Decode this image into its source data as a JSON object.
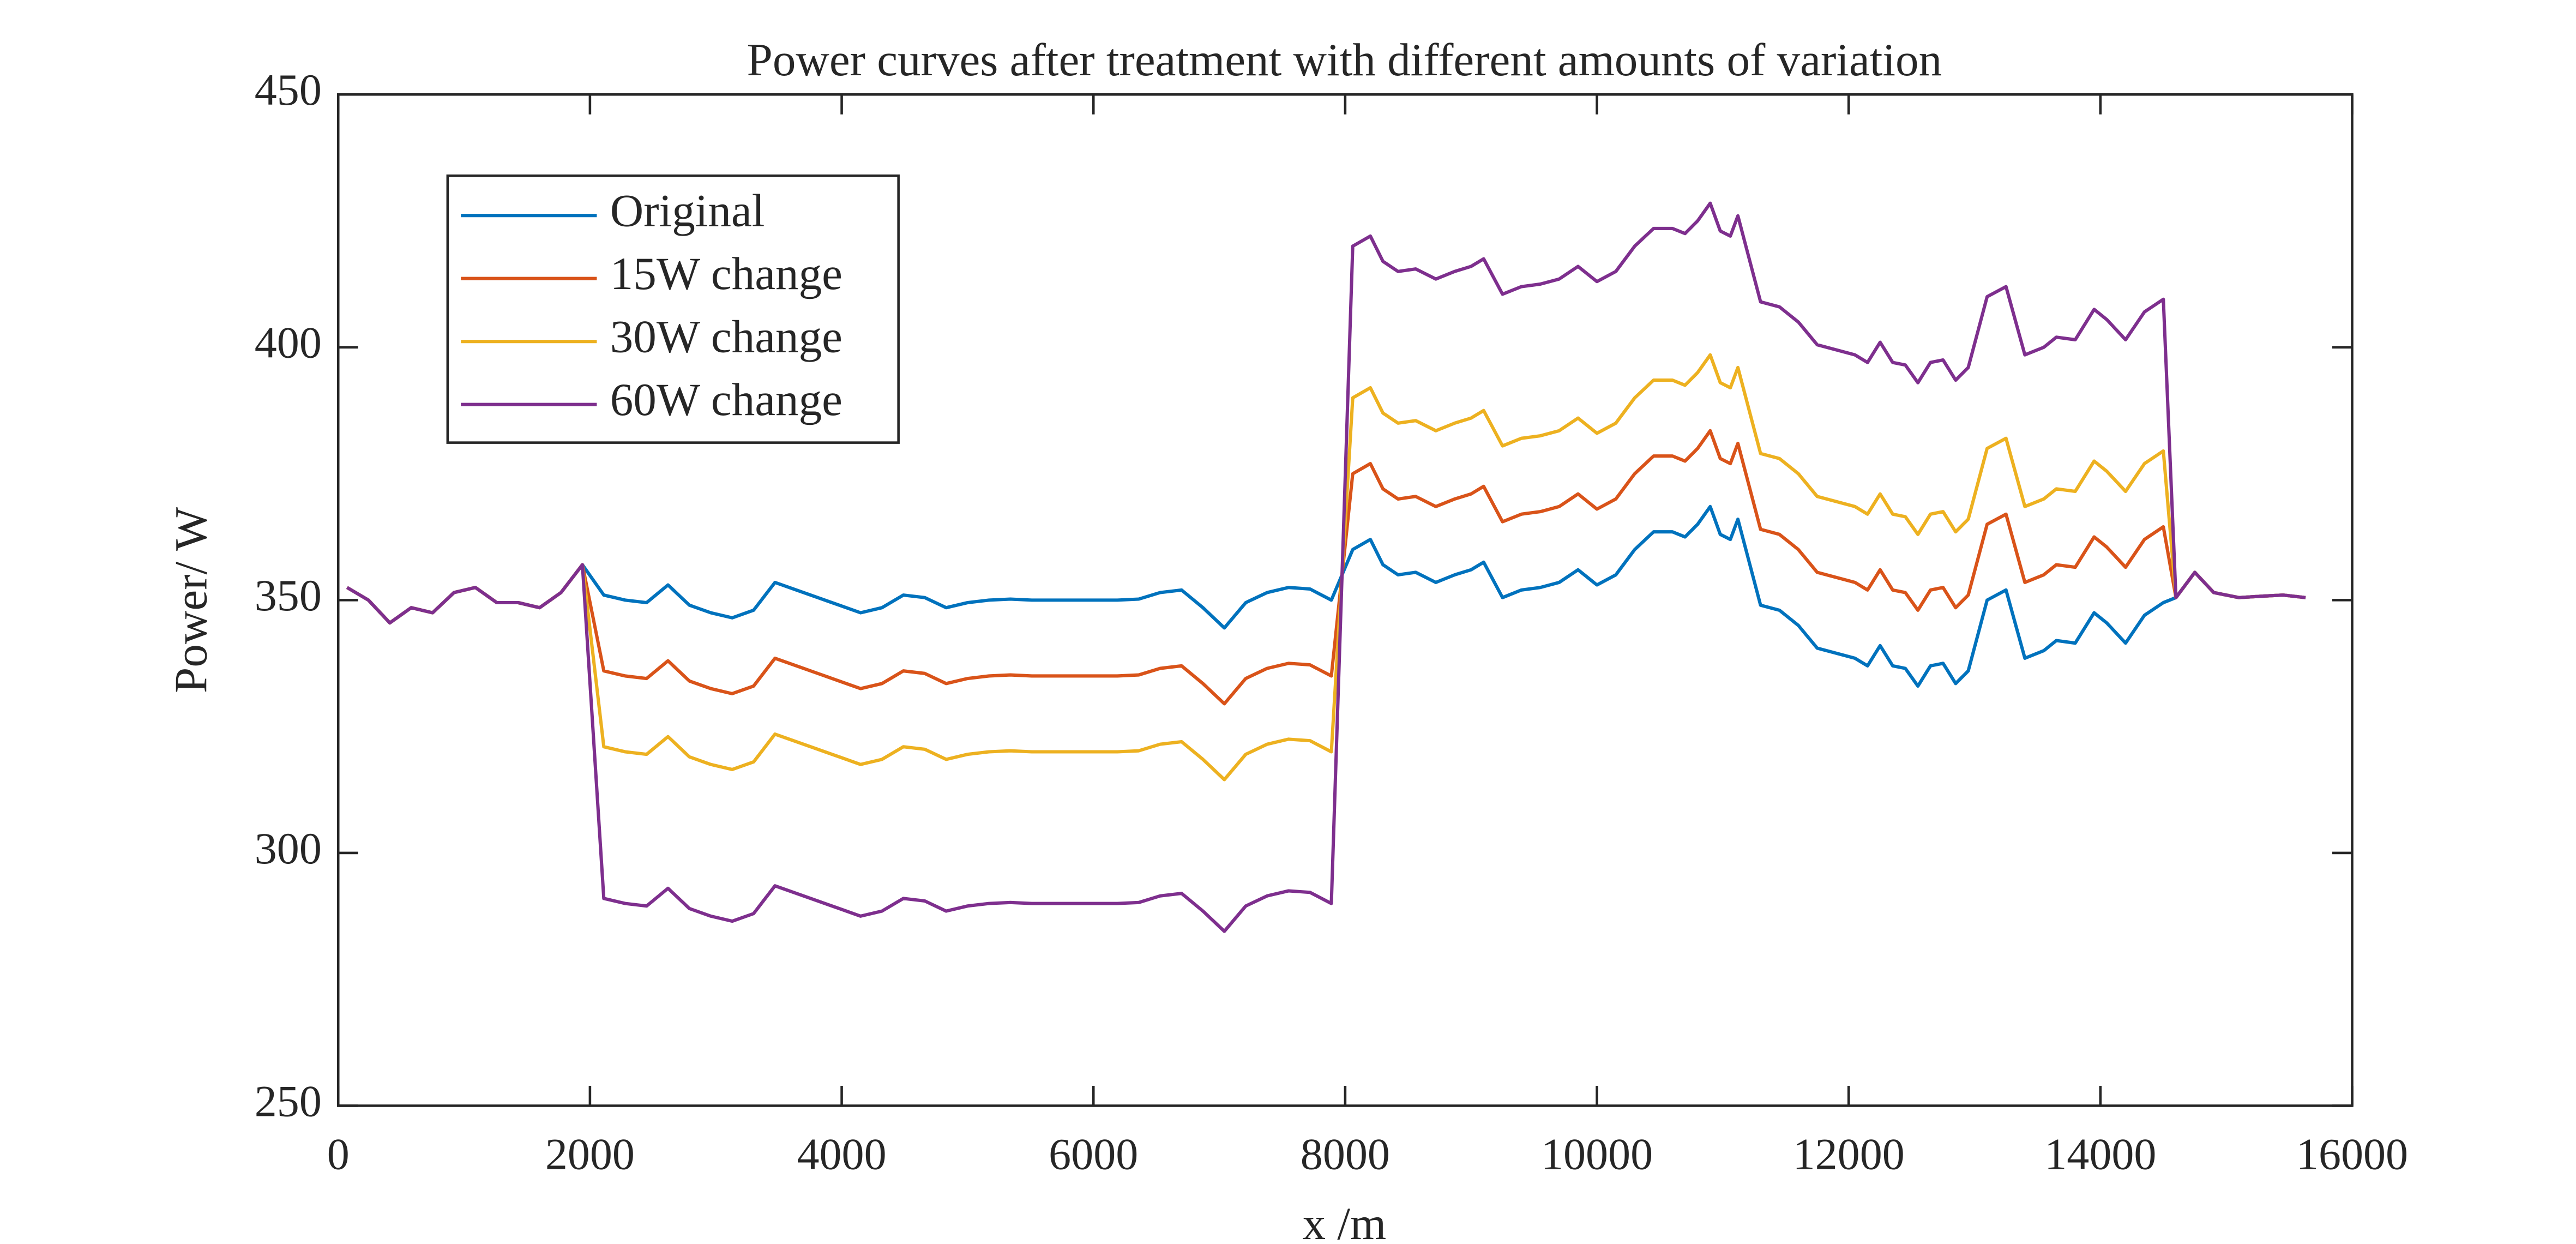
{
  "chart_data": {
    "type": "line",
    "title": "Power curves after treatment with different amounts of variation",
    "x_label": "x /m",
    "y_label": "Power/ W",
    "xlim": [
      0,
      16000
    ],
    "xticks": [
      0,
      2000,
      4000,
      6000,
      8000,
      10000,
      12000,
      14000,
      16000
    ],
    "ylim": [
      250,
      450
    ],
    "yticks": [
      250,
      300,
      350,
      400,
      450
    ],
    "grid": false,
    "legend": "upper left",
    "x": [
      70,
      240,
      410,
      580,
      750,
      920,
      1090,
      1260,
      1430,
      1600,
      1770,
      1940,
      2110,
      2280,
      2450,
      2620,
      2790,
      2960,
      3130,
      3300,
      3470,
      3640,
      3810,
      3980,
      4150,
      4320,
      4490,
      4660,
      4830,
      5000,
      5170,
      5340,
      5510,
      5680,
      5850,
      6020,
      6190,
      6360,
      6530,
      6700,
      6870,
      7040,
      7210,
      7380,
      7550,
      7720,
      7890,
      8060,
      8200,
      8300,
      8420,
      8560,
      8720,
      8870,
      9000,
      9100,
      9250,
      9400,
      9550,
      9700,
      9850,
      10000,
      10150,
      10300,
      10450,
      10600,
      10700,
      10800,
      10900,
      10980,
      11060,
      11120,
      11300,
      11450,
      11600,
      11750,
      11900,
      12050,
      12150,
      12250,
      12350,
      12450,
      12550,
      12650,
      12750,
      12850,
      12950,
      13100,
      13250,
      13400,
      13550,
      13650,
      13800,
      13950,
      14050,
      14200,
      14350,
      14500,
      14600,
      14750,
      14900,
      15100,
      15300,
      15450,
      15630
    ],
    "series": [
      {
        "name": "Original",
        "color": "#0072BD",
        "values": [
          352.5,
          350,
          345.5,
          348.5,
          347.5,
          351.5,
          352.5,
          349.5,
          349.5,
          348.5,
          351.5,
          357,
          351,
          350,
          349.5,
          353,
          349,
          347.5,
          346.5,
          348,
          353.5,
          352,
          350.5,
          349,
          347.5,
          348.5,
          351,
          350.5,
          348.5,
          349.5,
          350,
          350.2,
          350,
          350,
          350,
          350,
          350,
          350.2,
          351.5,
          352,
          348.5,
          344.5,
          349.5,
          351.5,
          352.5,
          352.2,
          350,
          360,
          362,
          357,
          355,
          355.5,
          353.5,
          355,
          356,
          357.5,
          350.5,
          352,
          352.5,
          353.5,
          356,
          353,
          355,
          360,
          363.5,
          363.5,
          362.5,
          365,
          368.5,
          363,
          362,
          366,
          349,
          348,
          345,
          340.5,
          339.5,
          338.5,
          337,
          341,
          337,
          336.5,
          333,
          337,
          337.5,
          333.5,
          336,
          350,
          352,
          338.5,
          340,
          342,
          341.5,
          347.5,
          345.5,
          341.5,
          347,
          349.5,
          350.5,
          355.5,
          351.5,
          350.5,
          350.8,
          351,
          350.5
        ]
      },
      {
        "name": "15W change",
        "color": "#D95319",
        "values": [
          352.5,
          350,
          345.5,
          348.5,
          347.5,
          351.5,
          352.5,
          349.5,
          349.5,
          348.5,
          351.5,
          357,
          336,
          335,
          334.5,
          338,
          334,
          332.5,
          331.5,
          333,
          338.5,
          337,
          335.5,
          334,
          332.5,
          333.5,
          336,
          335.5,
          333.5,
          334.5,
          335,
          335.2,
          335,
          335,
          335,
          335,
          335,
          335.2,
          336.5,
          337,
          333.5,
          329.5,
          334.5,
          336.5,
          337.5,
          337.2,
          335,
          375,
          377,
          372,
          370,
          370.5,
          368.5,
          370,
          371,
          372.5,
          365.5,
          367,
          367.5,
          368.5,
          371,
          368,
          370,
          375,
          378.5,
          378.5,
          377.5,
          380,
          383.5,
          378,
          377,
          381,
          364,
          363,
          360,
          355.5,
          354.5,
          353.5,
          352,
          356,
          352,
          351.5,
          348,
          352,
          352.5,
          348.5,
          351,
          365,
          367,
          353.5,
          355,
          357,
          356.5,
          362.5,
          360.5,
          356.5,
          362,
          364.5,
          350.5,
          355.5,
          351.5,
          350.5,
          350.8,
          351,
          350.5
        ]
      },
      {
        "name": "30W change",
        "color": "#EDB120",
        "values": [
          352.5,
          350,
          345.5,
          348.5,
          347.5,
          351.5,
          352.5,
          349.5,
          349.5,
          348.5,
          351.5,
          357,
          321,
          320,
          319.5,
          323,
          319,
          317.5,
          316.5,
          318,
          323.5,
          322,
          320.5,
          319,
          317.5,
          318.5,
          321,
          320.5,
          318.5,
          319.5,
          320,
          320.2,
          320,
          320,
          320,
          320,
          320,
          320.2,
          321.5,
          322,
          318.5,
          314.5,
          319.5,
          321.5,
          322.5,
          322.2,
          320,
          390,
          392,
          387,
          385,
          385.5,
          383.5,
          385,
          386,
          387.5,
          380.5,
          382,
          382.5,
          383.5,
          386,
          383,
          385,
          390,
          393.5,
          393.5,
          392.5,
          395,
          398.5,
          393,
          392,
          396,
          379,
          378,
          375,
          370.5,
          369.5,
          368.5,
          367,
          371,
          367,
          366.5,
          363,
          367,
          367.5,
          363.5,
          366,
          380,
          382,
          368.5,
          370,
          372,
          371.5,
          377.5,
          375.5,
          371.5,
          377,
          379.5,
          350.5,
          355.5,
          351.5,
          350.5,
          350.8,
          351,
          350.5
        ]
      },
      {
        "name": "60W change",
        "color": "#7E2F8E",
        "values": [
          352.5,
          350,
          345.5,
          348.5,
          347.5,
          351.5,
          352.5,
          349.5,
          349.5,
          348.5,
          351.5,
          357,
          291,
          290,
          289.5,
          293,
          289,
          287.5,
          286.5,
          288,
          293.5,
          292,
          290.5,
          289,
          287.5,
          288.5,
          291,
          290.5,
          288.5,
          289.5,
          290,
          290.2,
          290,
          290,
          290,
          290,
          290,
          290.2,
          291.5,
          292,
          288.5,
          284.5,
          289.5,
          291.5,
          292.5,
          292.2,
          290,
          420,
          422,
          417,
          415,
          415.5,
          413.5,
          415,
          416,
          417.5,
          410.5,
          412,
          412.5,
          413.5,
          416,
          413,
          415,
          420,
          423.5,
          423.5,
          422.5,
          425,
          428.5,
          423,
          422,
          426,
          409,
          408,
          405,
          400.5,
          399.5,
          398.5,
          397,
          401,
          397,
          396.5,
          393,
          397,
          397.5,
          393.5,
          396,
          410,
          412,
          398.5,
          400,
          402,
          401.5,
          407.5,
          405.5,
          401.5,
          407,
          409.5,
          350.5,
          355.5,
          351.5,
          350.5,
          350.8,
          351,
          350.5
        ]
      }
    ]
  }
}
